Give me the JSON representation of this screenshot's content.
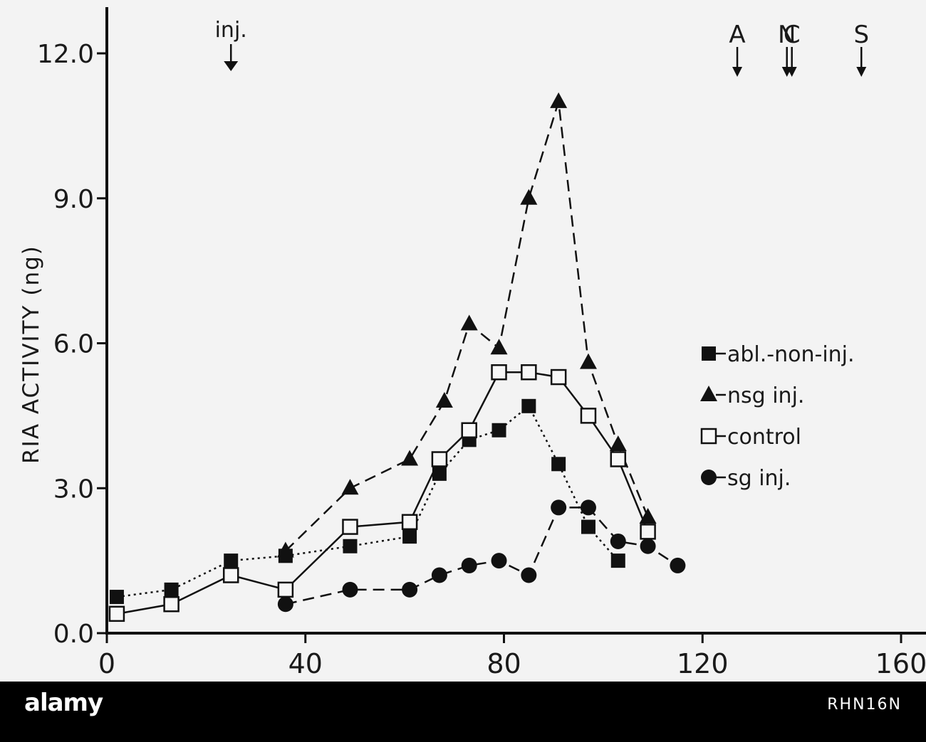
{
  "chart_data": {
    "type": "line",
    "xlabel": "",
    "ylabel": "RIA ACTIVITY (ng)",
    "xlim": [
      0,
      160
    ],
    "ylim": [
      0,
      12.0
    ],
    "x_ticks": [
      {
        "value": 0,
        "label": "0"
      },
      {
        "value": 40,
        "label": "40"
      },
      {
        "value": 80,
        "label": "80"
      },
      {
        "value": 120,
        "label": "120"
      },
      {
        "value": 160,
        "label": "160"
      }
    ],
    "y_ticks": [
      {
        "value": 0,
        "label": "0.0"
      },
      {
        "value": 3,
        "label": "3.0"
      },
      {
        "value": 6,
        "label": "6.0"
      },
      {
        "value": 9,
        "label": "9.0"
      },
      {
        "value": 12,
        "label": "12.0"
      }
    ],
    "grid": false,
    "legend_position": "right",
    "annotations": [
      {
        "label": "inj.",
        "x": 25
      },
      {
        "label": "A",
        "x": 127
      },
      {
        "label": "N",
        "x": 137
      },
      {
        "label": "C",
        "x": 138
      },
      {
        "label": "S",
        "x": 152
      }
    ],
    "series": [
      {
        "name": "abl.-non-inj.",
        "marker": "filled-square",
        "line": "dotted",
        "points": [
          [
            2,
            0.75
          ],
          [
            13,
            0.9
          ],
          [
            25,
            1.5
          ],
          [
            36,
            1.6
          ],
          [
            49,
            1.8
          ],
          [
            61,
            2.0
          ],
          [
            67,
            3.3
          ],
          [
            73,
            4.0
          ],
          [
            79,
            4.2
          ],
          [
            85,
            4.7
          ],
          [
            91,
            3.5
          ],
          [
            97,
            2.2
          ],
          [
            103,
            1.5
          ]
        ]
      },
      {
        "name": "nsg inj.",
        "marker": "filled-triangle",
        "line": "dashed",
        "points": [
          [
            36,
            1.7
          ],
          [
            49,
            3.0
          ],
          [
            61,
            3.6
          ],
          [
            68,
            4.8
          ],
          [
            73,
            6.4
          ],
          [
            79,
            5.9
          ],
          [
            85,
            9.0
          ],
          [
            91,
            11.0
          ],
          [
            97,
            5.6
          ],
          [
            103,
            3.9
          ],
          [
            109,
            2.4
          ]
        ]
      },
      {
        "name": "control",
        "marker": "open-square",
        "line": "solid",
        "points": [
          [
            2,
            0.4
          ],
          [
            13,
            0.6
          ],
          [
            25,
            1.2
          ],
          [
            36,
            0.9
          ],
          [
            49,
            2.2
          ],
          [
            61,
            2.3
          ],
          [
            67,
            3.6
          ],
          [
            73,
            4.2
          ],
          [
            79,
            5.4
          ],
          [
            85,
            5.4
          ],
          [
            91,
            5.3
          ],
          [
            97,
            4.5
          ],
          [
            103,
            3.6
          ],
          [
            109,
            2.1
          ]
        ]
      },
      {
        "name": "sg inj.",
        "marker": "filled-circle",
        "line": "dashed",
        "points": [
          [
            36,
            0.6
          ],
          [
            49,
            0.9
          ],
          [
            61,
            0.9
          ],
          [
            67,
            1.2
          ],
          [
            73,
            1.4
          ],
          [
            79,
            1.5
          ],
          [
            85,
            1.2
          ],
          [
            91,
            2.6
          ],
          [
            97,
            2.6
          ],
          [
            103,
            1.9
          ],
          [
            109,
            1.8
          ],
          [
            115,
            1.4
          ]
        ]
      }
    ]
  },
  "banner": {
    "logo_text": "alamy",
    "image_id": "RHN16N"
  }
}
